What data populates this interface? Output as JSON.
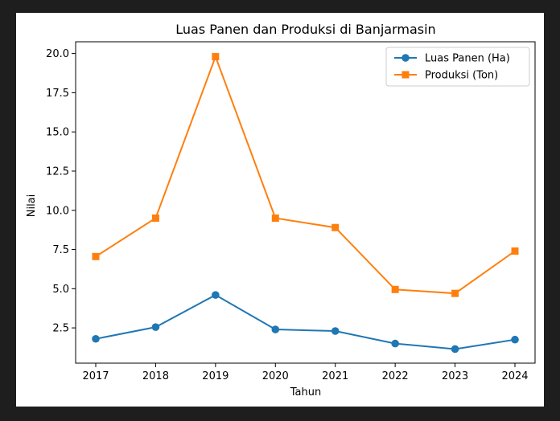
{
  "chart_data": {
    "type": "line",
    "title": "Luas Panen dan Produksi di Banjarmasin",
    "xlabel": "Tahun",
    "ylabel": "Nilai",
    "x": [
      "2017",
      "2018",
      "2019",
      "2020",
      "2021",
      "2022",
      "2023",
      "2024"
    ],
    "ylim": [
      0.25,
      20.75
    ],
    "yticks": [
      "2.5",
      "5.0",
      "7.5",
      "10.0",
      "12.5",
      "15.0",
      "17.5",
      "20.0"
    ],
    "grid": false,
    "legend_position": "top-right",
    "series": [
      {
        "name": "Luas Panen (Ha)",
        "values": [
          1.8,
          2.55,
          4.6,
          2.4,
          2.3,
          1.5,
          1.15,
          1.75
        ],
        "color": "#1f77b4",
        "marker": "circle"
      },
      {
        "name": "Produksi (Ton)",
        "values": [
          7.05,
          9.5,
          19.8,
          9.5,
          8.9,
          4.95,
          4.7,
          7.4
        ],
        "color": "#ff7f0e",
        "marker": "square"
      }
    ]
  }
}
